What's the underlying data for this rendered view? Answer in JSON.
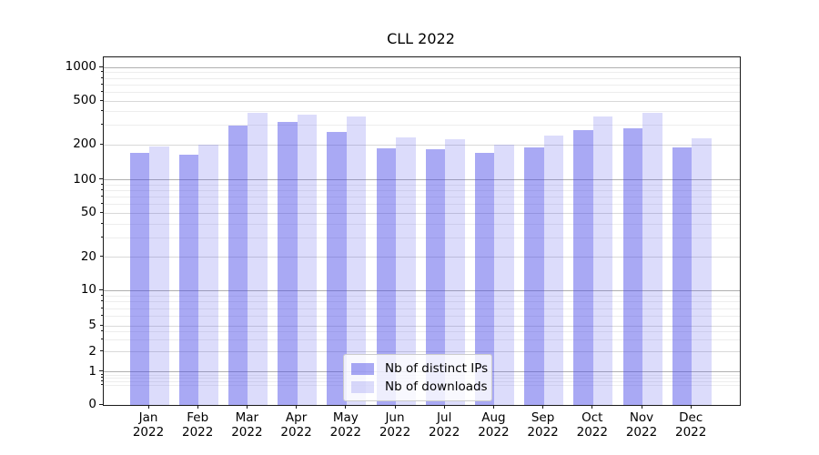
{
  "chart_data": {
    "type": "bar",
    "title": "CLL 2022",
    "categories": [
      "Jan",
      "Feb",
      "Mar",
      "Apr",
      "May",
      "Jun",
      "Jul",
      "Aug",
      "Sep",
      "Oct",
      "Nov",
      "Dec"
    ],
    "year": "2022",
    "series": [
      {
        "name": "Nb of distinct IPs",
        "color": "rgba(68,68,232,0.46)",
        "values": [
          170,
          166,
          300,
          326,
          260,
          188,
          184,
          172,
          191,
          270,
          282,
          190
        ]
      },
      {
        "name": "Nb of downloads",
        "color": "rgba(68,68,232,0.19)",
        "values": [
          195,
          200,
          394,
          377,
          360,
          234,
          226,
          202,
          243,
          360,
          388,
          229
        ]
      }
    ],
    "yscale": "log-like (symlog with 0 baseline)",
    "ylim": [
      0,
      1200
    ],
    "y_ticks": [
      {
        "label": "1000",
        "value": 1000
      },
      {
        "label": "500",
        "value": 500
      },
      {
        "label": "200",
        "value": 200
      },
      {
        "label": "100",
        "value": 100
      },
      {
        "label": "50",
        "value": 50
      },
      {
        "label": "20",
        "value": 20
      },
      {
        "label": "10",
        "value": 10
      },
      {
        "label": "5",
        "value": 5
      },
      {
        "label": "2",
        "value": 2
      },
      {
        "label": "1",
        "value": 1
      },
      {
        "label": "0",
        "value": 0
      }
    ],
    "grid": true,
    "legend_position": "lower center"
  },
  "colors": {
    "bar_distinct_ips": "rgba(68,68,232,0.46)",
    "bar_downloads": "rgba(68,68,232,0.19)",
    "grid_major": "#b0b0b0",
    "grid_mid": "#d9d9d9",
    "grid_minor": "#ededed",
    "spine": "#1a1a1a",
    "legend_border": "#cccccc",
    "legend_bg": "rgba(255,255,255,0.8)"
  }
}
